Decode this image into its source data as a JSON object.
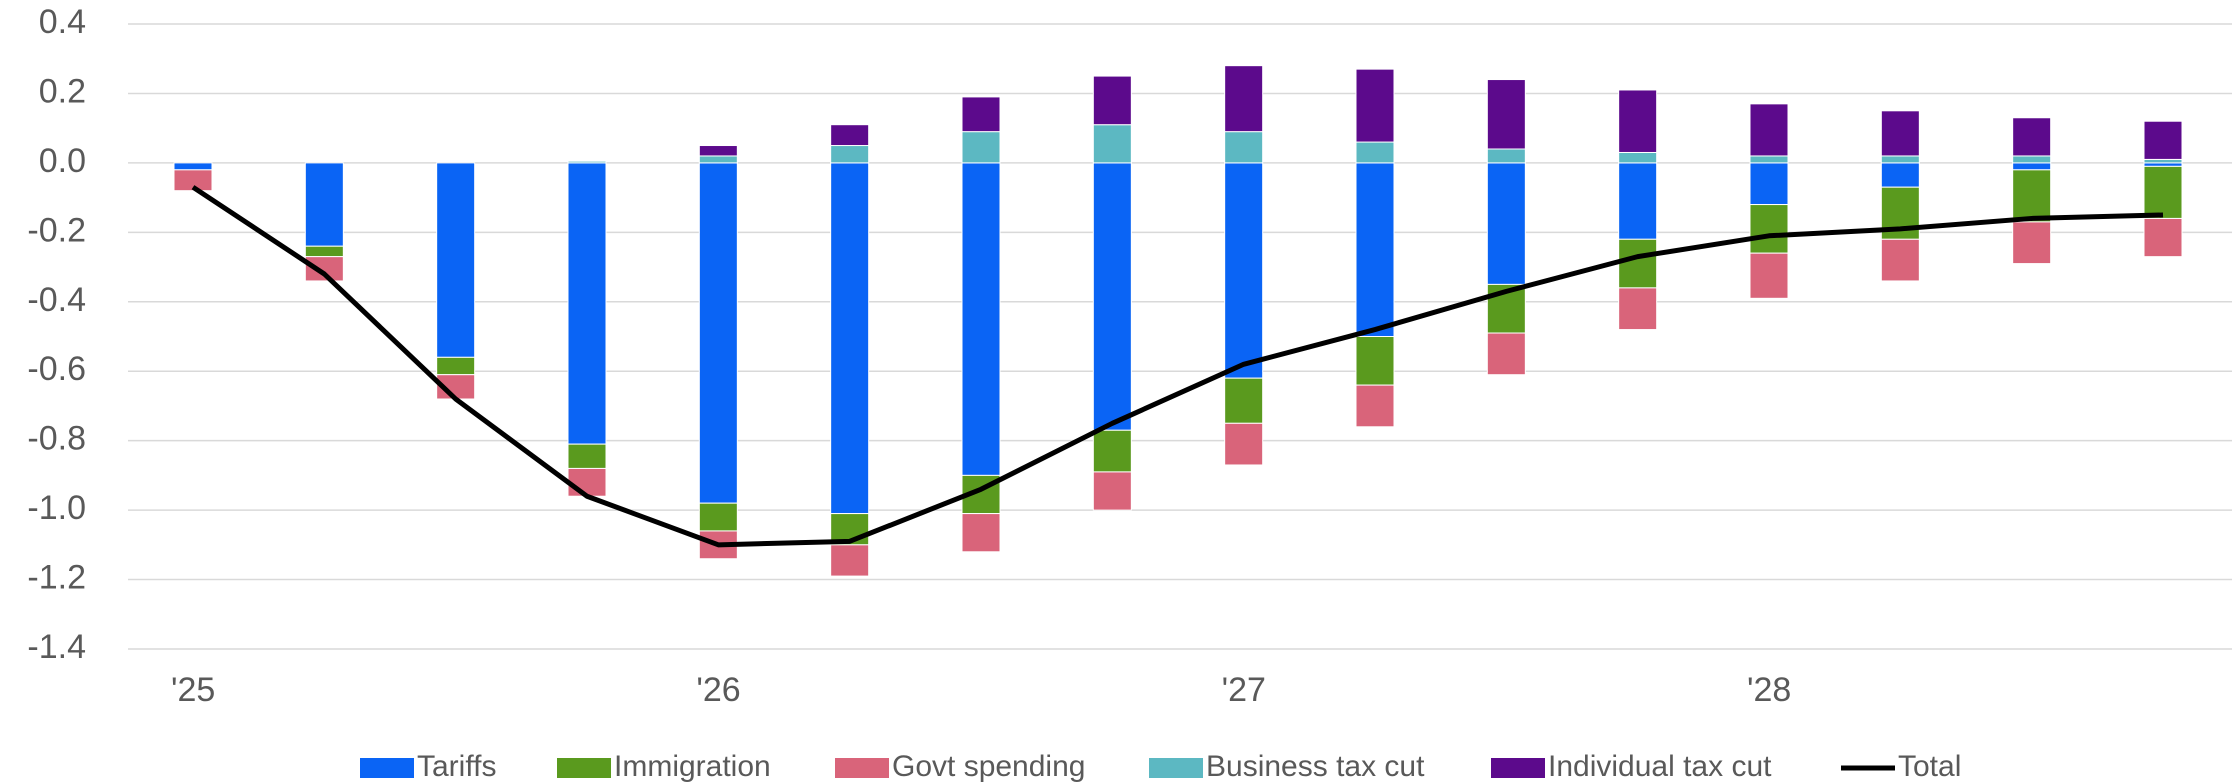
{
  "chart_data": {
    "type": "bar",
    "categories": [
      "'25",
      null,
      null,
      null,
      "'26",
      null,
      null,
      null,
      "'27",
      null,
      null,
      null,
      "'28",
      null,
      null,
      null
    ],
    "series": [
      {
        "name": "Tariffs",
        "color": "#0a64f5",
        "values": [
          -0.02,
          -0.24,
          -0.56,
          -0.81,
          -0.98,
          -1.01,
          -0.9,
          -0.77,
          -0.62,
          -0.5,
          -0.35,
          -0.22,
          -0.12,
          -0.07,
          -0.02,
          -0.01
        ]
      },
      {
        "name": "Immigration",
        "color": "#5a9a1e",
        "values": [
          0,
          -0.03,
          -0.05,
          -0.07,
          -0.08,
          -0.09,
          -0.11,
          -0.12,
          -0.13,
          -0.14,
          -0.14,
          -0.14,
          -0.14,
          -0.15,
          -0.15,
          -0.15
        ]
      },
      {
        "name": "Govt spending",
        "color": "#d9647a",
        "values": [
          -0.06,
          -0.07,
          -0.07,
          -0.08,
          -0.08,
          -0.09,
          -0.11,
          -0.11,
          -0.12,
          -0.12,
          -0.12,
          -0.12,
          -0.13,
          -0.12,
          -0.12,
          -0.11
        ]
      },
      {
        "name": "Business tax cut",
        "color": "#5cb8c2",
        "values": [
          0,
          0,
          0,
          0.005,
          0.02,
          0.05,
          0.09,
          0.11,
          0.09,
          0.06,
          0.04,
          0.03,
          0.02,
          0.02,
          0.02,
          0.01
        ]
      },
      {
        "name": "Individual tax cut",
        "color": "#5c0a8c",
        "values": [
          0,
          0,
          0,
          0,
          0.03,
          0.06,
          0.1,
          0.14,
          0.19,
          0.21,
          0.2,
          0.18,
          0.15,
          0.13,
          0.11,
          0.11
        ]
      },
      {
        "name": "Total",
        "color": "#000000",
        "type": "line",
        "values": [
          -0.07,
          -0.32,
          -0.68,
          -0.96,
          -1.1,
          -1.09,
          -0.94,
          -0.75,
          -0.58,
          -0.48,
          -0.37,
          -0.27,
          -0.21,
          -0.19,
          -0.16,
          -0.15
        ]
      }
    ],
    "ylim": [
      -1.4,
      0.4
    ],
    "yticks": [
      {
        "value": -1.4,
        "label": "-1.4"
      },
      -1.2,
      {
        "value": -1.0,
        "label": "-1.0"
      },
      -0.8,
      -0.6,
      -0.4,
      -0.2,
      {
        "value": 0,
        "label": "0.0"
      },
      0.2,
      0.4
    ],
    "grid": true,
    "legend": "bottom"
  }
}
